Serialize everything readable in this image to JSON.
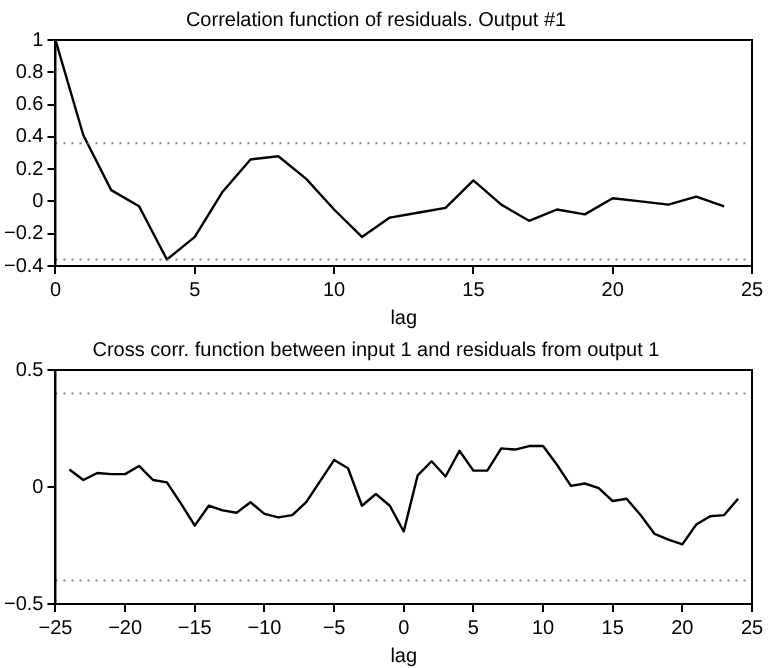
{
  "chart_data": [
    {
      "type": "line",
      "title": "Correlation function of residuals. Output #1",
      "xlabel": "lag",
      "x": [
        0,
        1,
        2,
        3,
        4,
        5,
        6,
        7,
        8,
        9,
        10,
        11,
        12,
        13,
        14,
        15,
        16,
        17,
        18,
        19,
        20,
        21,
        22,
        23,
        24
      ],
      "series": [
        {
          "color": "#000000",
          "values": [
            1,
            0.41,
            0.07,
            -0.03,
            -0.36,
            -0.22,
            0.06,
            0.26,
            0.28,
            0.14,
            -0.05,
            -0.22,
            -0.1,
            -0.07,
            -0.04,
            0.13,
            -0.02,
            -0.12,
            -0.05,
            -0.08,
            0.02,
            0.0,
            -0.02,
            0.03,
            -0.03
          ]
        }
      ],
      "xlim": [
        0,
        25
      ],
      "xticks": [
        0,
        5,
        10,
        15,
        20,
        25
      ],
      "ylim": [
        -0.4,
        1
      ],
      "yticks": [
        -0.4,
        -0.2,
        0,
        0.2,
        0.4,
        0.6,
        0.8,
        1
      ],
      "ref_lines": [
        {
          "axis": "y",
          "value": 0.36,
          "color": "#888888",
          "line_style": "dotted"
        },
        {
          "axis": "y",
          "value": -0.36,
          "color": "#888888",
          "line_style": "dotted"
        }
      ],
      "marker": "none",
      "line_style": "solid",
      "legend": false,
      "grid": false
    },
    {
      "type": "line",
      "title": "Cross corr. function between input 1 and residuals from output 1",
      "xlabel": "lag",
      "x": [
        -24,
        -23,
        -22,
        -21,
        -20,
        -19,
        -18,
        -17,
        -16,
        -15,
        -14,
        -13,
        -12,
        -11,
        -10,
        -9,
        -8,
        -7,
        -6,
        -5,
        -4,
        -3,
        -2,
        -1,
        0,
        1,
        2,
        3,
        4,
        5,
        6,
        7,
        8,
        9,
        10,
        11,
        12,
        13,
        14,
        15,
        16,
        17,
        18,
        19,
        20,
        21,
        22,
        23,
        24
      ],
      "series": [
        {
          "color": "#000000",
          "values": [
            0.075,
            0.03,
            0.06,
            0.055,
            0.055,
            0.09,
            0.03,
            0.02,
            -0.07,
            -0.165,
            -0.08,
            -0.1,
            -0.11,
            -0.065,
            -0.115,
            -0.13,
            -0.12,
            -0.065,
            0.025,
            0.115,
            0.08,
            -0.08,
            -0.03,
            -0.08,
            -0.19,
            0.05,
            0.11,
            0.045,
            0.155,
            0.07,
            0.07,
            0.165,
            0.16,
            0.175,
            0.175,
            0.095,
            0.005,
            0.015,
            -0.005,
            -0.06,
            -0.05,
            -0.12,
            -0.2,
            -0.225,
            -0.245,
            -0.16,
            -0.125,
            -0.12,
            -0.05
          ]
        }
      ],
      "xlim": [
        -25,
        25
      ],
      "xticks": [
        -25,
        -20,
        -15,
        -10,
        -5,
        0,
        5,
        10,
        15,
        20,
        25
      ],
      "ylim": [
        -0.5,
        0.5
      ],
      "yticks": [
        -0.5,
        0,
        0.5
      ],
      "ref_lines": [
        {
          "axis": "y",
          "value": 0.4,
          "color": "#888888",
          "line_style": "dotted"
        },
        {
          "axis": "y",
          "value": -0.4,
          "color": "#888888",
          "line_style": "dotted"
        }
      ],
      "marker": "none",
      "line_style": "solid",
      "legend": false,
      "grid": false
    }
  ]
}
